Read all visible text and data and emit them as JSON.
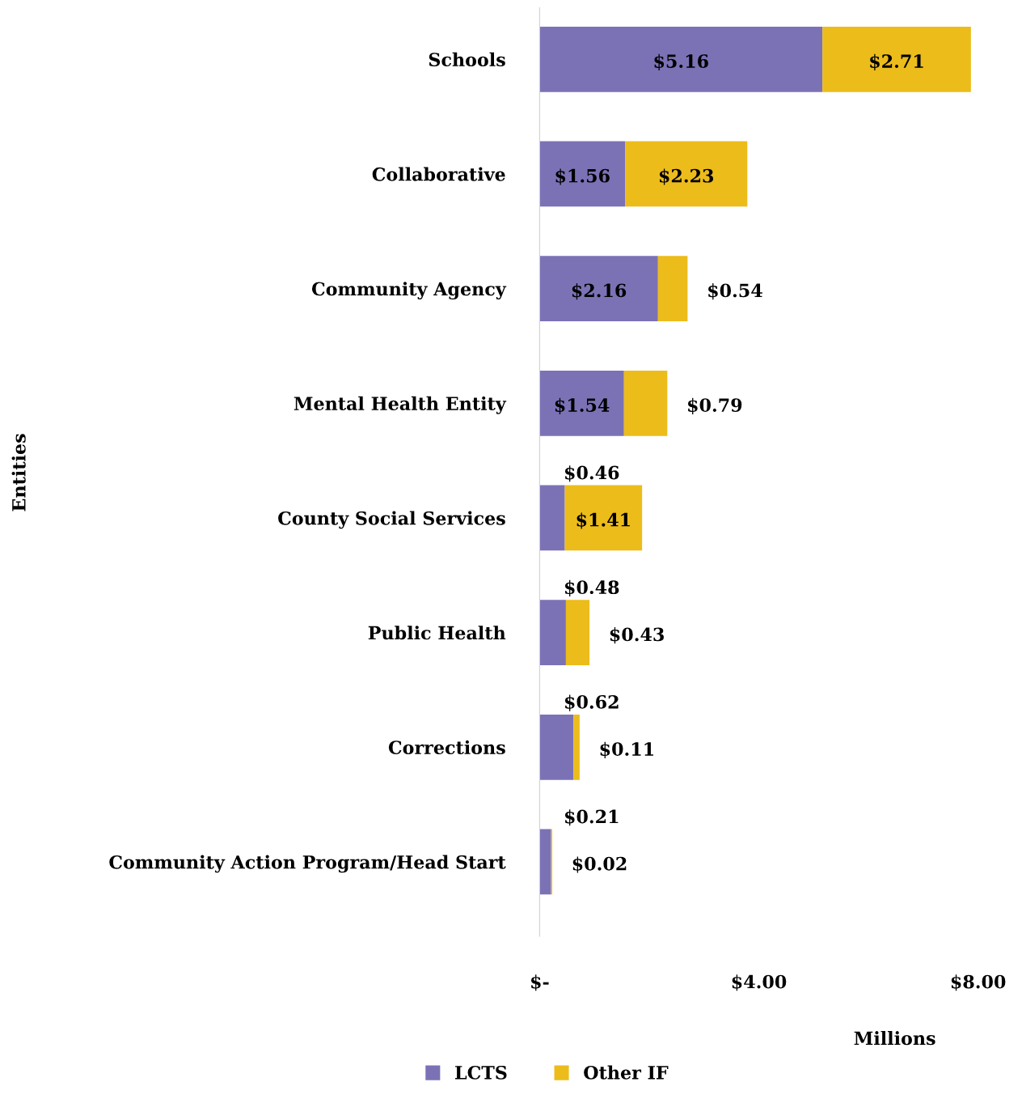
{
  "chart_data": {
    "type": "bar",
    "orientation": "horizontal",
    "stacked": true,
    "ylabel": "Entities",
    "xlabel": "Millions",
    "categories": [
      "Schools",
      "Collaborative",
      "Community Agency",
      "Mental Health Entity",
      "County Social Services",
      "Public Health",
      "Corrections",
      "Community Action Program/Head Start"
    ],
    "series": [
      {
        "name": "LCTS",
        "color": "#7b72b6",
        "values": [
          5.16,
          1.56,
          2.16,
          1.54,
          0.46,
          0.48,
          0.62,
          0.21
        ],
        "value_labels": [
          "$5.16",
          "$1.56",
          "$2.16",
          "$1.54",
          "$0.46",
          "$0.48",
          "$0.62",
          "$0.21"
        ]
      },
      {
        "name": "Other IF",
        "color": "#ecbc1b",
        "values": [
          2.71,
          2.23,
          0.54,
          0.79,
          1.41,
          0.43,
          0.11,
          0.02
        ],
        "value_labels": [
          "$2.71",
          "$2.23",
          "$0.54",
          "$0.79",
          "$1.41",
          "$0.43",
          "$0.11",
          "$0.02"
        ]
      }
    ],
    "xlim": [
      0,
      8
    ],
    "xticks": [
      {
        "value": 0,
        "label": "$-"
      },
      {
        "value": 4,
        "label": "$4.00"
      },
      {
        "value": 8,
        "label": "$8.00"
      }
    ],
    "grid": false,
    "legend": "bottom"
  }
}
